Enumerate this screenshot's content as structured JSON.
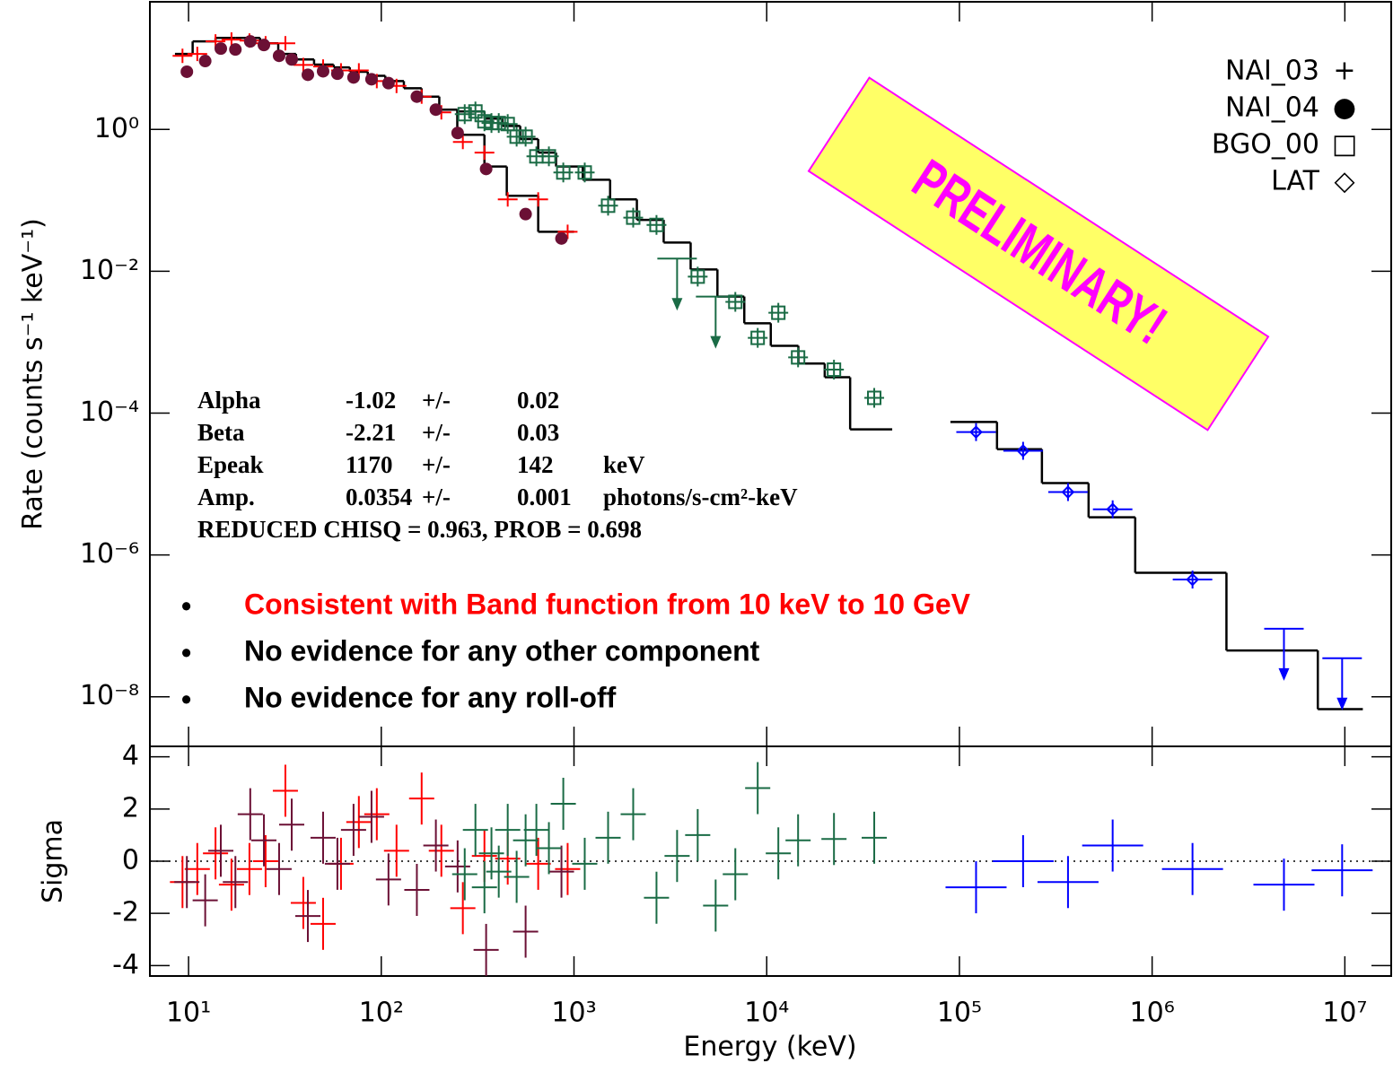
{
  "chart_data": {
    "type": "spectrum",
    "y_label": "Rate (counts s⁻¹ keV⁻¹)",
    "x_label": "Energy (keV)",
    "residual_label": "Sigma",
    "log_x": true,
    "log_y": true,
    "xlim": [
      6.3,
      17400000
    ],
    "ylim": [
      2e-09,
      63
    ],
    "residual_ylim": [
      -4.4,
      4.4
    ],
    "xticks": [
      {
        "value": 10,
        "label": "10¹"
      },
      {
        "value": 100,
        "label": "10²"
      },
      {
        "value": 1000,
        "label": "10³"
      },
      {
        "value": 10000,
        "label": "10⁴"
      },
      {
        "value": 100000,
        "label": "10⁵"
      },
      {
        "value": 1000000,
        "label": "10⁶"
      },
      {
        "value": 10000000,
        "label": "10⁷"
      }
    ],
    "yticks": [
      {
        "value": 1,
        "label": "10⁰"
      },
      {
        "value": 0.01,
        "label": "10⁻²"
      },
      {
        "value": 0.0001,
        "label": "10⁻⁴"
      },
      {
        "value": 1e-06,
        "label": "10⁻⁶"
      },
      {
        "value": 1e-08,
        "label": "10⁻⁸"
      }
    ],
    "residual_yticks": [
      -4,
      -2,
      0,
      2,
      4
    ],
    "series": [
      {
        "name": "NAI_03",
        "symbol": "+",
        "marker": "cross",
        "color": "#ff0000",
        "x": [
          9.3,
          11.1,
          13.8,
          16.7,
          20.7,
          25.1,
          31.8,
          39.4,
          49.9,
          61.8,
          76.5,
          94.8,
          120,
          162,
          205,
          265,
          343,
          453,
          652,
          927
        ],
        "values": [
          10.9,
          11.6,
          17.4,
          18.5,
          17.9,
          16.4,
          16.4,
          8.1,
          7.7,
          6.8,
          6.8,
          4.8,
          4.1,
          2.9,
          1.74,
          0.665,
          0.47,
          0.103,
          0.103,
          0.036
        ],
        "residuals": [
          -0.8,
          -0.3,
          0.3,
          -0.9,
          -0.3,
          0,
          2.7,
          -1.6,
          -2.4,
          -0.1,
          1.5,
          1.8,
          0.4,
          2.4,
          0.4,
          -1.8,
          0.2,
          0.1,
          -0.1,
          -0.3
        ]
      },
      {
        "name": "NAI_04",
        "symbol": "●",
        "marker": "circle",
        "color": "#6b1035",
        "x": [
          9.8,
          12.2,
          14.7,
          17.5,
          20.9,
          24.6,
          29.5,
          34.3,
          41.6,
          49.9,
          59.2,
          71.8,
          89,
          109,
          153,
          192,
          249,
          350,
          561,
          861
        ],
        "values": [
          6.5,
          9.2,
          13.8,
          13.4,
          17.4,
          15.5,
          10.9,
          9.7,
          5.9,
          6.6,
          6.1,
          5.4,
          5.1,
          4.5,
          2.9,
          1.9,
          0.89,
          0.277,
          0.064,
          0.029
        ],
        "residuals": [
          -0.8,
          -1.5,
          0.4,
          -0.8,
          1.8,
          0.8,
          -0.3,
          1.4,
          -2.1,
          0.9,
          -0.1,
          1.2,
          1.7,
          -0.7,
          -1.1,
          0.6,
          -0.2,
          -3.4,
          -2.7,
          -0.4
        ]
      },
      {
        "name": "BGO_00",
        "symbol": "□",
        "marker": "square",
        "color": "#1a6b45",
        "x": [
          271,
          308,
          343,
          373,
          407,
          453,
          504,
          561,
          638,
          741,
          880,
          1137,
          1503,
          2029,
          2680,
          3428,
          4385,
          5433,
          6874,
          8980,
          11490,
          14550,
          22340,
          36140
        ],
        "values": [
          1.64,
          1.79,
          1.3,
          1.23,
          1.23,
          1.19,
          0.79,
          0.79,
          0.417,
          0.417,
          0.247,
          0.247,
          0.084,
          0.057,
          0.045,
          0.0151,
          0.0084,
          0.0044,
          0.0037,
          0.00115,
          0.0026,
          0.00061,
          0.00041,
          0.000164
        ],
        "upper_limit": [
          false,
          false,
          false,
          false,
          false,
          false,
          false,
          false,
          false,
          false,
          false,
          false,
          false,
          false,
          false,
          true,
          false,
          true,
          false,
          false,
          false,
          false,
          false,
          false
        ],
        "residuals": [
          -0.5,
          1.2,
          -1.0,
          0.3,
          -0.4,
          1.2,
          -0.6,
          0.8,
          1.2,
          0.5,
          2.2,
          -0.1,
          0.9,
          1.8,
          -1.4,
          0.2,
          1.0,
          -1.7,
          -0.5,
          2.8,
          0.3,
          0.8,
          0.85,
          0.9
        ]
      },
      {
        "name": "LAT",
        "symbol": "◇",
        "marker": "diamond",
        "color": "#0000ff",
        "x": [
          122000,
          214000,
          366000,
          624000,
          1620000,
          4830000,
          9680000
        ],
        "values": [
          5.4e-05,
          2.94e-05,
          7.7e-06,
          4.4e-06,
          4.5e-07,
          9.1e-08,
          3.5e-08
        ],
        "upper_limit": [
          false,
          false,
          false,
          false,
          false,
          true,
          true
        ],
        "residuals": [
          -1.0,
          0,
          -0.8,
          0.6,
          -0.3,
          -0.9,
          -0.35
        ]
      }
    ],
    "models": [
      {
        "edges": [
          8.5,
          10.5,
          13.8,
          17.5,
          23.5,
          29.2,
          36.1,
          44.8,
          56.6,
          68.7,
          85.1,
          105,
          131,
          162,
          200,
          248,
          343,
          448,
          652,
          1000
        ],
        "levels": [
          11.6,
          17.4,
          19.5,
          19.5,
          16.4,
          11.6,
          9.7,
          8.2,
          7.5,
          6.5,
          5.7,
          4.8,
          3.8,
          2.9,
          1.9,
          0.84,
          0.3,
          0.116,
          0.036
        ]
      },
      {
        "edges": [
          248,
          343,
          425,
          526,
          652,
          807,
          1110,
          1540,
          2120,
          2920,
          4030,
          5550,
          7650,
          10500,
          14600,
          20000,
          27100,
          44800
        ],
        "levels": [
          1.79,
          1.42,
          1.12,
          0.73,
          0.47,
          0.3,
          0.195,
          0.103,
          0.053,
          0.0254,
          0.0106,
          0.0044,
          0.00185,
          0.00089,
          0.0005,
          0.00032,
          5.9e-05
        ]
      },
      {
        "edges": [
          89800,
          156700,
          268000,
          468000,
          817000,
          2430000,
          7240000,
          12400000
        ],
        "levels": [
          7.5e-05,
          3.1e-05,
          1.03e-05,
          3.4e-06,
          5.6e-07,
          4.5e-08,
          6.7e-09
        ]
      }
    ],
    "fit_table": [
      [
        "Alpha",
        "-1.02",
        "+/-",
        "0.02"
      ],
      [
        "Beta",
        "-2.21",
        "+/-",
        "0.03"
      ],
      [
        "Epeak",
        "1170",
        "+/-",
        "142",
        "keV"
      ],
      [
        "Amp.",
        "0.0354",
        "+/-",
        "0.001",
        "photons/s-cm²-keV"
      ]
    ],
    "fit_stats": "REDUCED CHISQ = 0.963, PROB = 0.698",
    "bullets": [
      {
        "text": "Consistent with Band function from 10 keV to 10 GeV",
        "color": "#ff0000"
      },
      {
        "text": "No evidence for any other component",
        "color": "#000000"
      },
      {
        "text": "No evidence for any roll-off",
        "color": "#000000"
      }
    ],
    "stamp": "PRELIMINARY!"
  }
}
